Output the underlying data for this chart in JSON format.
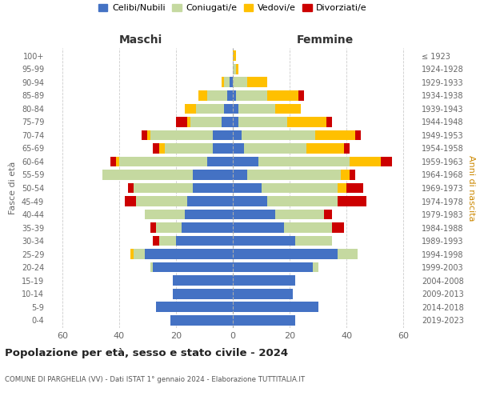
{
  "age_groups": [
    "0-4",
    "5-9",
    "10-14",
    "15-19",
    "20-24",
    "25-29",
    "30-34",
    "35-39",
    "40-44",
    "45-49",
    "50-54",
    "55-59",
    "60-64",
    "65-69",
    "70-74",
    "75-79",
    "80-84",
    "85-89",
    "90-94",
    "95-99",
    "100+"
  ],
  "birth_years": [
    "2019-2023",
    "2014-2018",
    "2009-2013",
    "2004-2008",
    "1999-2003",
    "1994-1998",
    "1989-1993",
    "1984-1988",
    "1979-1983",
    "1974-1978",
    "1969-1973",
    "1964-1968",
    "1959-1963",
    "1954-1958",
    "1949-1953",
    "1944-1948",
    "1939-1943",
    "1934-1938",
    "1929-1933",
    "1924-1928",
    "≤ 1923"
  ],
  "colors": {
    "celibe": "#4472c4",
    "coniugato": "#c5d9a0",
    "vedovo": "#ffc000",
    "divorziato": "#cc0000"
  },
  "maschi": {
    "celibe": [
      22,
      27,
      21,
      21,
      28,
      31,
      20,
      18,
      17,
      16,
      14,
      14,
      9,
      7,
      7,
      4,
      3,
      2,
      1,
      0,
      0
    ],
    "coniugato": [
      0,
      0,
      0,
      0,
      1,
      4,
      6,
      9,
      14,
      18,
      21,
      32,
      31,
      17,
      22,
      11,
      10,
      7,
      2,
      0,
      0
    ],
    "vedovo": [
      0,
      0,
      0,
      0,
      0,
      1,
      0,
      0,
      0,
      0,
      0,
      0,
      1,
      2,
      1,
      1,
      4,
      3,
      1,
      0,
      0
    ],
    "divorziato": [
      0,
      0,
      0,
      0,
      0,
      0,
      2,
      2,
      0,
      4,
      2,
      0,
      2,
      2,
      2,
      4,
      0,
      0,
      0,
      0,
      0
    ]
  },
  "femmine": {
    "nubile": [
      22,
      30,
      21,
      22,
      28,
      37,
      22,
      18,
      15,
      12,
      10,
      5,
      9,
      4,
      3,
      2,
      2,
      1,
      0,
      0,
      0
    ],
    "coniugata": [
      0,
      0,
      0,
      0,
      2,
      7,
      13,
      17,
      17,
      25,
      27,
      33,
      32,
      22,
      26,
      17,
      13,
      11,
      5,
      1,
      0
    ],
    "vedova": [
      0,
      0,
      0,
      0,
      0,
      0,
      0,
      0,
      0,
      0,
      3,
      3,
      11,
      13,
      14,
      14,
      9,
      11,
      7,
      1,
      1
    ],
    "divorziata": [
      0,
      0,
      0,
      0,
      0,
      0,
      0,
      4,
      3,
      10,
      6,
      2,
      4,
      2,
      2,
      2,
      0,
      2,
      0,
      0,
      0
    ]
  },
  "xlim": 65,
  "xticks": [
    -60,
    -40,
    -20,
    0,
    20,
    40,
    60
  ],
  "title": "Popolazione per età, sesso e stato civile - 2024",
  "subtitle": "COMUNE DI PARGHELIA (VV) - Dati ISTAT 1° gennaio 2024 - Elaborazione TUTTITALIA.IT",
  "ylabel_left": "Fasce di età",
  "ylabel_right": "Anni di nascita",
  "xlabel_left": "Maschi",
  "xlabel_right": "Femmine",
  "legend_labels": [
    "Celibi/Nubili",
    "Coniugati/e",
    "Vedovi/e",
    "Divorziati/e"
  ],
  "background_color": "#ffffff",
  "grid_color": "#cccccc",
  "bar_height": 0.78
}
